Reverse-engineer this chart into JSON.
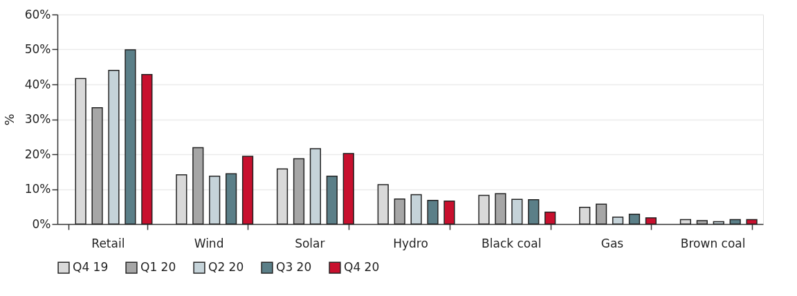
{
  "chart_data": {
    "type": "bar",
    "ylabel": "%",
    "categories": [
      "Retail",
      "Wind",
      "Solar",
      "Hydro",
      "Black coal",
      "Gas",
      "Brown coal"
    ],
    "series": [
      {
        "name": "Q4 19",
        "color": "#d9d9d9",
        "values": [
          41.7,
          14.1,
          15.8,
          11.3,
          8.2,
          4.8,
          1.3
        ]
      },
      {
        "name": "Q1 20",
        "color": "#a6a6a6",
        "values": [
          33.3,
          21.9,
          18.7,
          7.2,
          8.7,
          5.7,
          1.0
        ]
      },
      {
        "name": "Q2 20",
        "color": "#c5d3d9",
        "values": [
          44.0,
          13.7,
          21.6,
          8.4,
          7.1,
          2.0,
          0.7
        ]
      },
      {
        "name": "Q3 20",
        "color": "#5b7f88",
        "values": [
          49.9,
          14.4,
          13.7,
          6.8,
          7.0,
          2.8,
          1.3
        ]
      },
      {
        "name": "Q4 20",
        "color": "#c8102e",
        "values": [
          42.8,
          19.4,
          20.2,
          6.6,
          3.4,
          1.8,
          1.3
        ]
      }
    ],
    "ylim": [
      0,
      60
    ],
    "yticks": [
      {
        "value": 0,
        "label": "0%"
      },
      {
        "value": 10,
        "label": "10%"
      },
      {
        "value": 20,
        "label": "20%"
      },
      {
        "value": 30,
        "label": "30%"
      },
      {
        "value": 40,
        "label": "40%"
      },
      {
        "value": 50,
        "label": "50%"
      },
      {
        "value": 60,
        "label": "60%"
      }
    ],
    "grid": "y",
    "legend": "bottom"
  }
}
